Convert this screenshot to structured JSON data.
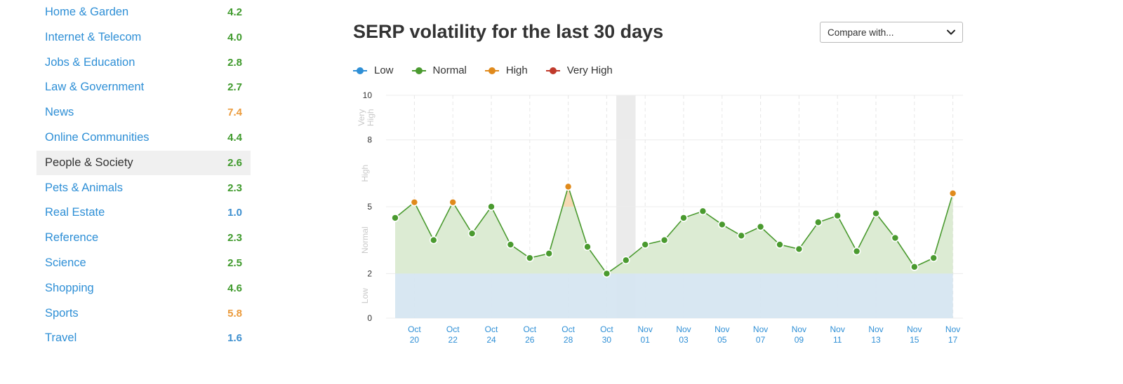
{
  "sidebar": {
    "categories": [
      {
        "name": "Home & Garden",
        "score": "4.2",
        "level": "normal"
      },
      {
        "name": "Internet & Telecom",
        "score": "4.0",
        "level": "normal"
      },
      {
        "name": "Jobs & Education",
        "score": "2.8",
        "level": "normal"
      },
      {
        "name": "Law & Government",
        "score": "2.7",
        "level": "normal"
      },
      {
        "name": "News",
        "score": "7.4",
        "level": "high"
      },
      {
        "name": "Online Communities",
        "score": "4.4",
        "level": "normal"
      },
      {
        "name": "People & Society",
        "score": "2.6",
        "level": "normal",
        "selected": true
      },
      {
        "name": "Pets & Animals",
        "score": "2.3",
        "level": "normal"
      },
      {
        "name": "Real Estate",
        "score": "1.0",
        "level": "low"
      },
      {
        "name": "Reference",
        "score": "2.3",
        "level": "normal"
      },
      {
        "name": "Science",
        "score": "2.5",
        "level": "normal"
      },
      {
        "name": "Shopping",
        "score": "4.6",
        "level": "normal"
      },
      {
        "name": "Sports",
        "score": "5.8",
        "level": "high"
      },
      {
        "name": "Travel",
        "score": "1.6",
        "level": "low"
      }
    ]
  },
  "header": {
    "title": "SERP volatility for the last 30 days",
    "compare_label": "Compare with...",
    "compare_icon": "chevron-down-icon"
  },
  "legend": [
    {
      "label": "Low",
      "color": "#2e8fd6"
    },
    {
      "label": "Normal",
      "color": "#4a9a2f"
    },
    {
      "label": "High",
      "color": "#e08a1c"
    },
    {
      "label": "Very High",
      "color": "#c0392b"
    }
  ],
  "colors": {
    "low": "#4a90c8",
    "normal": "#4a9a2f",
    "high": "#e08a1c",
    "low_band": "#d6e6f1",
    "normal_fill": "#dcebd3",
    "high_fill": "#f6d9b4",
    "highlight": "#ebebeb",
    "grid": "#ececec"
  },
  "chart_data": {
    "type": "area",
    "x": [
      "Oct 19",
      "Oct 20",
      "Oct 21",
      "Oct 22",
      "Oct 23",
      "Oct 24",
      "Oct 25",
      "Oct 26",
      "Oct 27",
      "Oct 28",
      "Oct 29",
      "Oct 30",
      "Oct 31",
      "Nov 01",
      "Nov 02",
      "Nov 03",
      "Nov 04",
      "Nov 05",
      "Nov 06",
      "Nov 07",
      "Nov 08",
      "Nov 09",
      "Nov 10",
      "Nov 11",
      "Nov 12",
      "Nov 13",
      "Nov 14",
      "Nov 15",
      "Nov 16",
      "Nov 17"
    ],
    "values": [
      4.5,
      5.2,
      3.5,
      5.2,
      3.8,
      5.0,
      3.3,
      2.7,
      2.9,
      5.9,
      3.2,
      2.0,
      2.6,
      3.3,
      3.5,
      4.5,
      4.8,
      4.2,
      3.7,
      4.1,
      3.3,
      3.1,
      4.3,
      4.6,
      3.0,
      4.7,
      3.6,
      2.3,
      2.7,
      5.6
    ],
    "y_ticks": [
      "0",
      "2",
      "5",
      "8",
      "10"
    ],
    "ylim": [
      0,
      10
    ],
    "x_tick_labels": [
      [
        "Oct",
        "20"
      ],
      [
        "Oct",
        "22"
      ],
      [
        "Oct",
        "24"
      ],
      [
        "Oct",
        "26"
      ],
      [
        "Oct",
        "28"
      ],
      [
        "Oct",
        "30"
      ],
      [
        "Nov",
        "01"
      ],
      [
        "Nov",
        "03"
      ],
      [
        "Nov",
        "05"
      ],
      [
        "Nov",
        "07"
      ],
      [
        "Nov",
        "09"
      ],
      [
        "Nov",
        "11"
      ],
      [
        "Nov",
        "13"
      ],
      [
        "Nov",
        "15"
      ],
      [
        "Nov",
        "17"
      ]
    ],
    "zones": [
      {
        "label": "Low",
        "from": 0,
        "to": 2
      },
      {
        "label": "Normal",
        "from": 2,
        "to": 5
      },
      {
        "label": "High",
        "from": 5,
        "to": 8
      },
      {
        "label": "Very High",
        "from": 8,
        "to": 10
      }
    ],
    "highlight_day": "Oct 31",
    "grid": true,
    "legend_position": "top-left"
  }
}
